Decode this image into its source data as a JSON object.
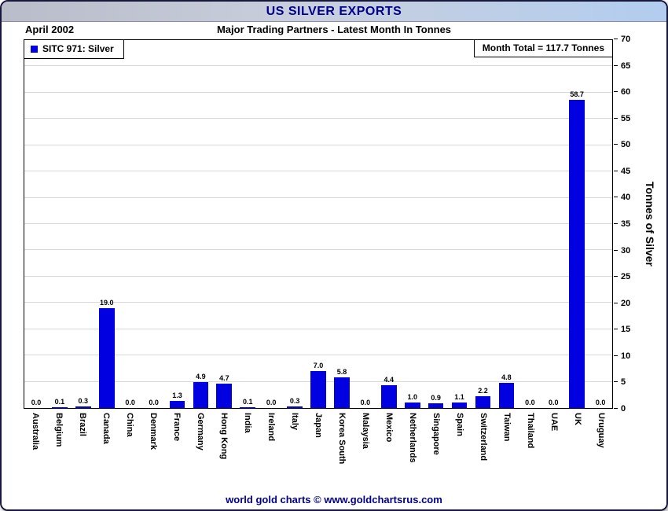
{
  "window": {
    "title": "US SILVER EXPORTS",
    "footer": "world gold charts © www.goldchartsrus.com"
  },
  "header": {
    "date": "April 2002",
    "subtitle": "Major Trading Partners - Latest Month In Tonnes"
  },
  "legend": {
    "label": "SITC 971: Silver"
  },
  "annotation": {
    "month_total": "Month Total = 117.7 Tonnes"
  },
  "colors": {
    "bar": "#0000e0",
    "title_text": "#00008b",
    "gridline": "#d8d8d8"
  },
  "chart_data": {
    "type": "bar",
    "title": "US SILVER EXPORTS",
    "subtitle": "Major Trading Partners - Latest Month In Tonnes",
    "period": "April 2002",
    "series_name": "SITC 971: Silver",
    "month_total_tonnes": 117.7,
    "ylabel": "Tonnes of Silver",
    "ylim": [
      0,
      70
    ],
    "ytick_step": 5,
    "grid": true,
    "legend_position": "top-left",
    "bar_color": "#0000e0",
    "categories": [
      "Australia",
      "Belgium",
      "Brazil",
      "Canada",
      "China",
      "Denmark",
      "France",
      "Germany",
      "Hong Kong",
      "India",
      "Ireland",
      "Italy",
      "Japan",
      "Korea South",
      "Malaysia",
      "Mexico",
      "Netherlands",
      "Singapore",
      "Spain",
      "Switzerland",
      "Taiwan",
      "Thailand",
      "UAE",
      "UK",
      "Uruguay"
    ],
    "values": [
      0.0,
      0.1,
      0.3,
      19.0,
      0.0,
      0.0,
      1.3,
      4.9,
      4.7,
      0.1,
      0.0,
      0.3,
      7.0,
      5.8,
      0.0,
      4.4,
      1.0,
      0.9,
      1.1,
      2.2,
      4.8,
      0.0,
      0.0,
      58.7,
      0.0
    ]
  }
}
